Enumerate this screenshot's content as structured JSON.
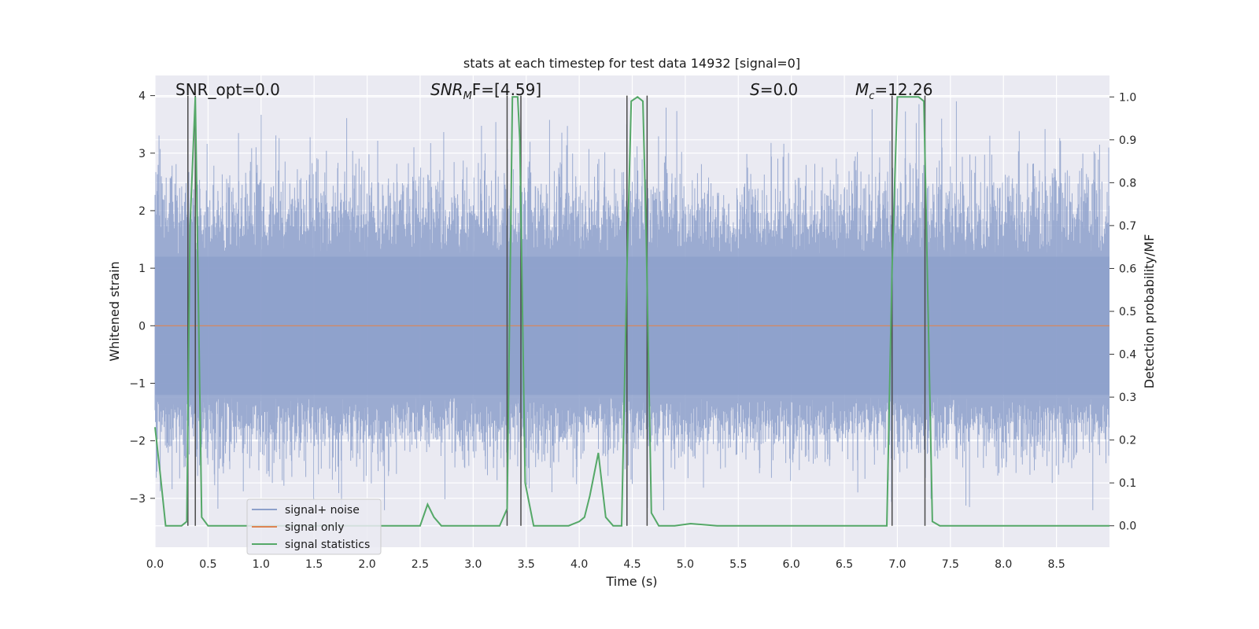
{
  "chart_data": {
    "type": "line",
    "title": "stats at each timestep for test data 14932 [signal=0]",
    "xlabel": "Time (s)",
    "ylabel_left": "Whitened strain",
    "ylabel_right": "Detection probability/MF",
    "xlim": [
      0.0,
      9.0
    ],
    "ylim_left": [
      -3.85,
      4.35
    ],
    "ylim_right": [
      -0.05,
      1.05
    ],
    "grid": true,
    "legend_position": "lower-left",
    "xticks": [
      0.0,
      0.5,
      1.0,
      1.5,
      2.0,
      2.5,
      3.0,
      3.5,
      4.0,
      4.5,
      5.0,
      5.5,
      6.0,
      6.5,
      7.0,
      7.5,
      8.0,
      8.5
    ],
    "xtick_labels": [
      "0.0",
      "0.5",
      "1.0",
      "1.5",
      "2.0",
      "2.5",
      "3.0",
      "3.5",
      "4.0",
      "4.5",
      "5.0",
      "5.5",
      "6.0",
      "6.5",
      "7.0",
      "7.5",
      "8.0",
      "8.5"
    ],
    "yticks_left": [
      4,
      3,
      2,
      1,
      0,
      -1,
      -2,
      -3
    ],
    "ytick_labels_left": [
      "4",
      "3",
      "2",
      "1",
      "0",
      "−1",
      "−2",
      "−3"
    ],
    "yticks_right": [
      1.0,
      0.9,
      0.8,
      0.7,
      0.6,
      0.5,
      0.4,
      0.3,
      0.2,
      0.1,
      0.0
    ],
    "ytick_labels_right": [
      "1.0",
      "0.9",
      "0.8",
      "0.7",
      "0.6",
      "0.5",
      "0.4",
      "0.3",
      "0.2",
      "0.1",
      "0.0"
    ],
    "annotations": {
      "snr_opt": "SNR_opt=0.0",
      "snr_mf_main": "SNR",
      "snr_mf_sub": "M",
      "snr_mf_tail": "F=[4.59]",
      "s_label": "S",
      "s_value": "=0.0",
      "mc_main": "M",
      "mc_sub": "c",
      "mc_value": "=12.26"
    },
    "series": [
      {
        "name": "signal+ noise",
        "color": "#8da0cb",
        "axis": "left",
        "kind": "noise",
        "amplitude_range": [
          -3.5,
          3.9
        ]
      },
      {
        "name": "signal only",
        "color": "#dd8452",
        "axis": "left",
        "x": [
          0.0,
          9.0
        ],
        "y": [
          0.0,
          0.0
        ]
      },
      {
        "name": "signal statistics",
        "color": "#55a868",
        "axis": "right",
        "x": [
          0.0,
          0.05,
          0.1,
          0.25,
          0.3,
          0.33,
          0.38,
          0.44,
          0.5,
          2.5,
          2.57,
          2.63,
          2.7,
          3.25,
          3.32,
          3.37,
          3.42,
          3.44,
          3.49,
          3.57,
          3.8,
          3.9,
          4.0,
          4.05,
          4.1,
          4.18,
          4.25,
          4.32,
          4.4,
          4.45,
          4.49,
          4.55,
          4.6,
          4.63,
          4.68,
          4.75,
          4.9,
          5.05,
          5.3,
          6.9,
          6.95,
          7.0,
          7.1,
          7.2,
          7.25,
          7.33,
          7.4,
          9.0
        ],
        "y": [
          0.23,
          0.12,
          0.0,
          0.0,
          0.01,
          0.7,
          1.0,
          0.02,
          0.0,
          0.0,
          0.05,
          0.02,
          0.0,
          0.0,
          0.04,
          1.0,
          1.0,
          0.9,
          0.1,
          0.0,
          0.0,
          0.0,
          0.01,
          0.02,
          0.07,
          0.17,
          0.02,
          0.0,
          0.0,
          0.6,
          0.99,
          1.0,
          0.99,
          0.7,
          0.03,
          0.0,
          0.0,
          0.005,
          0.0,
          0.0,
          0.6,
          1.0,
          1.0,
          1.0,
          0.99,
          0.01,
          0.0,
          0.0
        ]
      }
    ],
    "vertical_lines_x": [
      0.31,
      0.38,
      3.32,
      3.45,
      4.45,
      4.64,
      6.95,
      7.26
    ],
    "vertical_lines_color": "#4a4a4a"
  }
}
